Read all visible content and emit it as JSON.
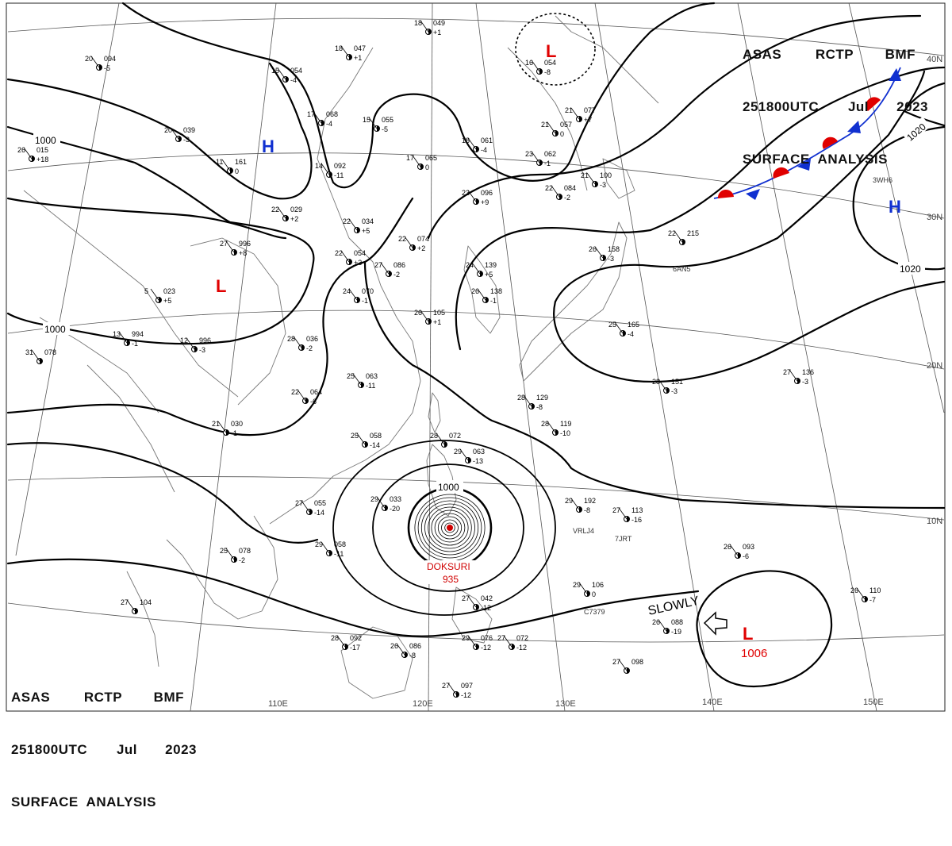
{
  "header": {
    "line1": [
      "ASAS",
      "RCTP",
      "BMF"
    ],
    "line2": [
      "251800UTC",
      "Jul",
      "2023"
    ],
    "line3": "SURFACE  ANALYSIS"
  },
  "colors": {
    "isobar": "#000000",
    "grid": "#555555",
    "coast": "#777777",
    "low": "#e00000",
    "high": "#1030d0",
    "typhoon": "#d00000",
    "front_warm": "#e00000",
    "front_cold": "#1030d0"
  },
  "longitude_labels": [
    "110E",
    "120E",
    "130E",
    "140E",
    "150E"
  ],
  "latitude_labels": [
    "40N",
    "30N",
    "20N",
    "10N"
  ],
  "isobar_labels": [
    "1000",
    "1000",
    "1000",
    "1020",
    "1020"
  ],
  "pressure_centers": [
    {
      "type": "H",
      "label": "H"
    },
    {
      "type": "H",
      "label": "H"
    },
    {
      "type": "L",
      "label": "L"
    },
    {
      "type": "L",
      "label": "L"
    },
    {
      "type": "L",
      "label": "L",
      "pressure": "1006"
    }
  ],
  "typhoon": {
    "name": "DOKSURI",
    "pressure": "935"
  },
  "movement_note": "SLOWLY",
  "station_plots": [
    {
      "t": "18",
      "p": "049",
      "c": "+1"
    },
    {
      "t": "18",
      "p": "047",
      "c": "+1"
    },
    {
      "t": "15",
      "p": "054",
      "c": "-4"
    },
    {
      "t": "17",
      "p": "068",
      "c": "-4"
    },
    {
      "t": "15",
      "p": "055",
      "c": "-5"
    },
    {
      "t": "20",
      "p": "039",
      "c": "-3"
    },
    {
      "t": "11",
      "p": "161",
      "c": "0"
    },
    {
      "t": "14",
      "p": "092",
      "c": "-11"
    },
    {
      "t": "17",
      "p": "065",
      "c": "0"
    },
    {
      "t": "18",
      "p": "061",
      "c": "-4"
    },
    {
      "t": "16",
      "p": "054",
      "c": "-8"
    },
    {
      "t": "21",
      "p": "057",
      "c": "0"
    },
    {
      "t": "23",
      "p": "062",
      "c": "-1"
    },
    {
      "t": "22",
      "p": "084",
      "c": "-2"
    },
    {
      "t": "23",
      "p": "096",
      "c": "+9"
    },
    {
      "t": "22",
      "p": "029",
      "c": "+2"
    },
    {
      "t": "22",
      "p": "034",
      "c": "+5"
    },
    {
      "t": "22",
      "p": "054",
      "c": "+3"
    },
    {
      "t": "22",
      "p": "074",
      "c": "+2"
    },
    {
      "t": "27",
      "p": "086",
      "c": "-2"
    },
    {
      "t": "27",
      "p": "996",
      "c": "+8"
    },
    {
      "t": "5",
      "p": "023",
      "c": "+5"
    },
    {
      "t": "24",
      "p": "070",
      "c": "-1"
    },
    {
      "t": "24",
      "p": "139",
      "c": "+5"
    },
    {
      "t": "26",
      "p": "138",
      "c": "-1"
    },
    {
      "t": "26",
      "p": "105",
      "c": "+1"
    },
    {
      "t": "26",
      "p": "158",
      "c": "-3"
    },
    {
      "t": "25",
      "p": "165",
      "c": "-4"
    },
    {
      "t": "28",
      "p": "036",
      "c": "-2"
    },
    {
      "t": "13",
      "p": "994",
      "c": "-1"
    },
    {
      "t": "12",
      "p": "996",
      "c": "-3"
    },
    {
      "t": "31",
      "p": "078",
      "c": ""
    },
    {
      "t": "25",
      "p": "063",
      "c": "-11"
    },
    {
      "t": "22",
      "p": "064",
      "c": "-6"
    },
    {
      "t": "21",
      "p": "030",
      "c": "-1"
    },
    {
      "t": "28",
      "p": "129",
      "c": "-8"
    },
    {
      "t": "28",
      "p": "151",
      "c": "-3"
    },
    {
      "t": "27",
      "p": "136",
      "c": "-3"
    },
    {
      "t": "28",
      "p": "119",
      "c": "-10"
    },
    {
      "t": "25",
      "p": "058",
      "c": "-14"
    },
    {
      "t": "28",
      "p": "072",
      "c": ""
    },
    {
      "t": "29",
      "p": "063",
      "c": "-13"
    },
    {
      "t": "29",
      "p": "033",
      "c": "-20"
    },
    {
      "t": "27",
      "p": "055",
      "c": "-14"
    },
    {
      "t": "29",
      "p": "058",
      "c": "-11"
    },
    {
      "t": "25",
      "p": "078",
      "c": "-2"
    },
    {
      "t": "29",
      "p": "192",
      "c": "-8"
    },
    {
      "t": "27",
      "p": "113",
      "c": "-16"
    },
    {
      "t": "26",
      "p": "093",
      "c": "-6"
    },
    {
      "t": "29",
      "p": "106",
      "c": "0"
    },
    {
      "t": "26",
      "p": "088",
      "c": "-19"
    },
    {
      "t": "26",
      "p": "110",
      "c": "-7"
    },
    {
      "t": "27",
      "p": "104",
      "c": ""
    },
    {
      "t": "28",
      "p": "092",
      "c": "-17"
    },
    {
      "t": "26",
      "p": "086",
      "c": "-8"
    },
    {
      "t": "27",
      "p": "042",
      "c": "-12"
    },
    {
      "t": "29",
      "p": "076",
      "c": "-12"
    },
    {
      "t": "27",
      "p": "072",
      "c": "-12"
    },
    {
      "t": "27",
      "p": "097",
      "c": "-12"
    },
    {
      "t": "27",
      "p": "098",
      "c": ""
    },
    {
      "t": "26",
      "p": "015",
      "c": "+18"
    },
    {
      "t": "20",
      "p": "094",
      "c": "-5"
    },
    {
      "t": "22",
      "p": "215",
      "c": ""
    },
    {
      "t": "21",
      "p": "077",
      "c": "+7"
    },
    {
      "t": "21",
      "p": "100",
      "c": "-3"
    }
  ],
  "ship_ids": [
    "VRLJ4",
    "7JRT",
    "C7379",
    "6AN5",
    "3WH6"
  ]
}
